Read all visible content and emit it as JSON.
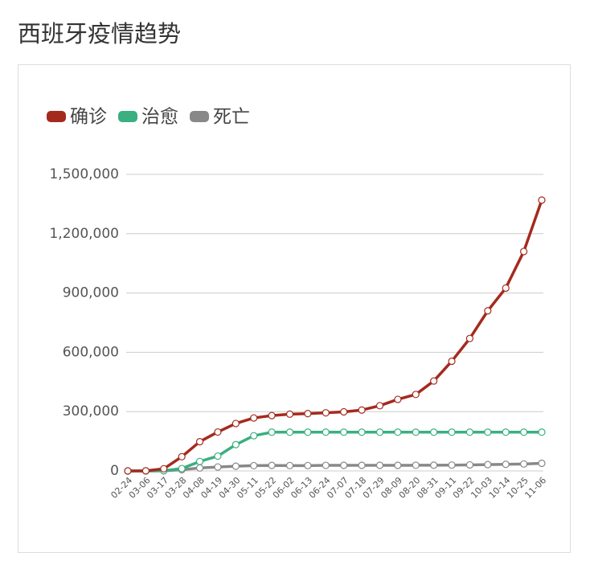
{
  "chart_data": {
    "type": "line",
    "title": "西班牙疫情趋势",
    "categories": [
      "02-24",
      "03-06",
      "03-17",
      "03-28",
      "04-08",
      "04-19",
      "04-30",
      "05-11",
      "05-22",
      "06-02",
      "06-13",
      "06-24",
      "07-07",
      "07-18",
      "07-29",
      "08-09",
      "08-20",
      "08-31",
      "09-11",
      "09-22",
      "10-03",
      "10-14",
      "10-25",
      "11-06"
    ],
    "series": [
      {
        "name": "确诊",
        "color": "#a52a1e",
        "values": [
          0,
          500,
          11000,
          72000,
          148000,
          197000,
          240000,
          268000,
          280000,
          287000,
          290000,
          294000,
          299000,
          308000,
          330000,
          362000,
          387000,
          455000,
          555000,
          670000,
          810000,
          925000,
          1110000,
          1370000
        ]
      },
      {
        "name": "治愈",
        "color": "#3aaf80",
        "values": [
          0,
          0,
          1000,
          12000,
          48000,
          75000,
          133000,
          178000,
          196000,
          196000,
          196000,
          196000,
          196000,
          196000,
          196000,
          196000,
          196000,
          196000,
          196000,
          196000,
          196000,
          196000,
          196000,
          196000
        ]
      },
      {
        "name": "死亡",
        "color": "#888888",
        "values": [
          0,
          0,
          500,
          6000,
          15000,
          20000,
          24000,
          26700,
          28000,
          27100,
          27100,
          28300,
          28400,
          28400,
          28400,
          28500,
          28800,
          29000,
          29700,
          30700,
          32000,
          33500,
          35300,
          38500
        ]
      }
    ],
    "ylim": [
      0,
      1500000
    ],
    "yticks": [
      0,
      {
        "value": 300000,
        "label": "300,000"
      },
      {
        "value": 600000,
        "label": "600,000"
      },
      {
        "value": 900000,
        "label": "900,000"
      },
      {
        "value": 1200000,
        "label": "1,200,000"
      },
      {
        "value": 1500000,
        "label": "1,500,000"
      }
    ],
    "grid": true
  }
}
